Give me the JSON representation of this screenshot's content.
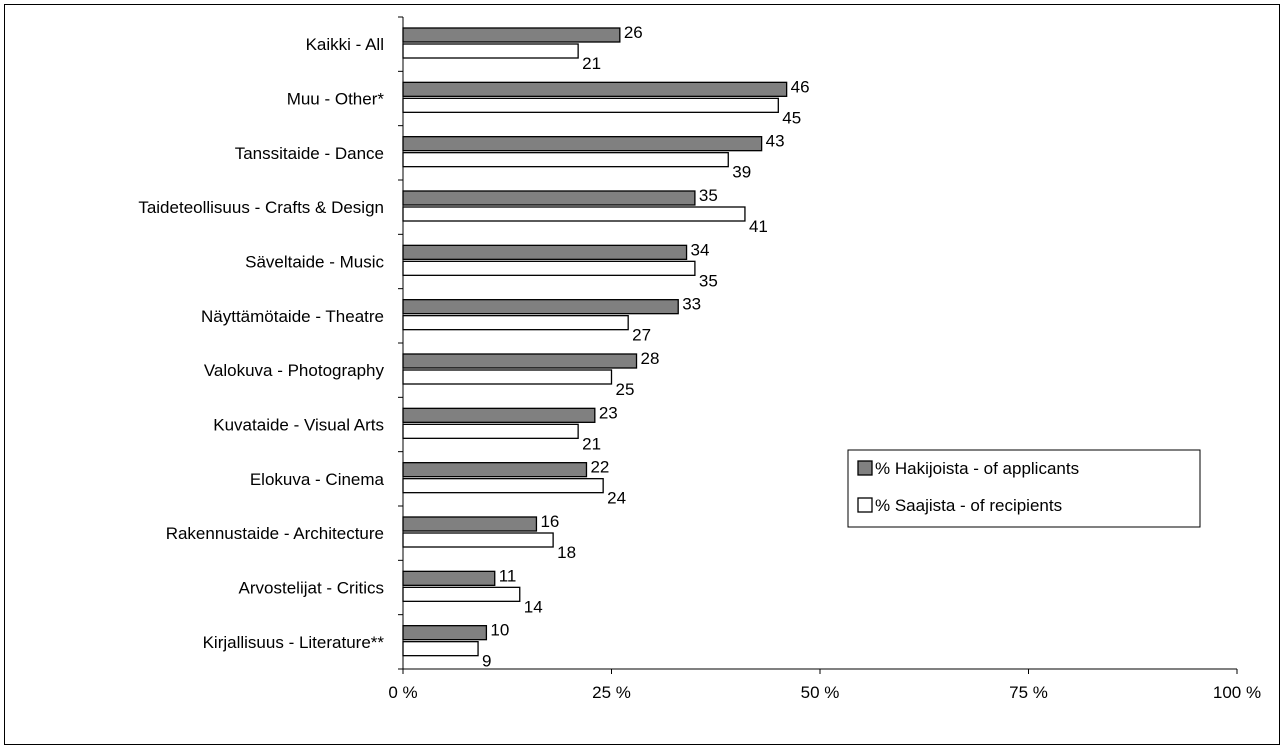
{
  "chart_data": {
    "type": "bar",
    "orientation": "horizontal",
    "categories": [
      "Kaikki - All",
      "Muu - Other*",
      "Tanssitaide - Dance",
      "Taideteollisuus - Crafts & Design",
      "Säveltaide - Music",
      "Näyttämötaide - Theatre",
      "Valokuva - Photography",
      "Kuvataide - Visual Arts",
      "Elokuva - Cinema",
      "Rakennustaide - Architecture",
      "Arvostelijat - Critics",
      "Kirjallisuus - Literature**"
    ],
    "series": [
      {
        "name": "% Hakijoista -  of applicants",
        "color": "#808080",
        "values": [
          26,
          46,
          43,
          35,
          34,
          33,
          28,
          23,
          22,
          16,
          11,
          10
        ],
        "labels": [
          "26",
          "46",
          "43",
          "35",
          "34",
          "33",
          "28",
          "23",
          "22",
          "16",
          "11",
          "10"
        ]
      },
      {
        "name": "% Saajista - of recipients",
        "color": "#ffffff",
        "values": [
          21,
          45,
          39,
          41,
          35,
          27,
          25,
          21,
          24,
          18,
          14,
          9
        ],
        "labels": [
          "21",
          "45",
          "39",
          "41",
          "35",
          "27",
          "25",
          "21",
          "24",
          "18",
          "14",
          "9"
        ]
      }
    ],
    "xlim": [
      0,
      100
    ],
    "xticks": [
      0,
      25,
      50,
      75,
      100
    ],
    "xtick_labels": [
      "0 %",
      "25 %",
      "50 %",
      "75 %",
      "100 %"
    ],
    "grid": false,
    "legend_position": "right"
  }
}
